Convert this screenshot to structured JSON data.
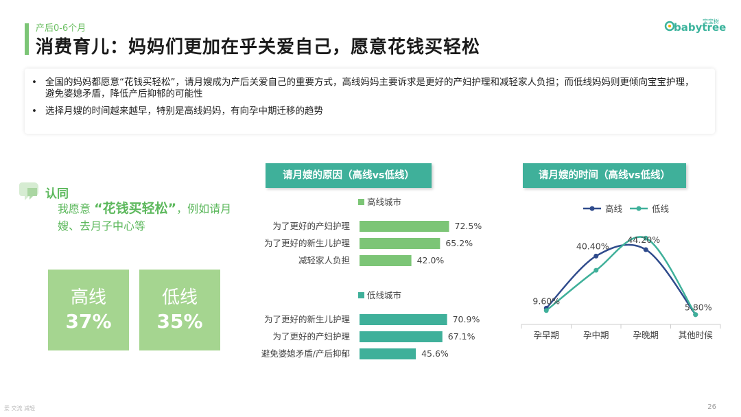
{
  "header": {
    "subtitle": "产后0-6个月",
    "title": "消费育儿：妈妈们更加在乎关爱自己，愿意花钱买轻松",
    "logo_en": "babytree",
    "logo_cn": "宝宝树"
  },
  "summary": {
    "bullets": [
      "全国的妈妈都愿意“花钱买轻松”，请月嫂成为产后关爱自己的重要方式，高线妈妈主要诉求是更好的产妇护理和减轻家人负担；而低线妈妈则更倾向宝宝护理，避免婆媳矛盾，降低产后抑郁的可能性",
      "选择月嫂的时间越来越早，特别是高线妈妈，有向孕中期迁移的趋势"
    ]
  },
  "agree": {
    "heading": "认同",
    "text_prefix": "我愿意",
    "highlight": "“花钱买轻松”",
    "text_suffix": "，例如请月嫂、去月子中心等"
  },
  "stats": [
    {
      "label": "高线",
      "value": "37%"
    },
    {
      "label": "低线",
      "value": "35%"
    }
  ],
  "colors": {
    "green_light": "#7cc576",
    "teal": "#3fb09a",
    "navy": "#2f4b8c",
    "stat_box": "#a5d590"
  },
  "chart_data": [
    {
      "type": "bar",
      "title": "请月嫂的原因（高线vs低线）",
      "groups": [
        {
          "name": "高线城市",
          "color": "#7cc576",
          "categories": [
            "为了更好的产妇护理",
            "为了更好的新生儿护理",
            "减轻家人负担"
          ],
          "values": [
            72.5,
            65.2,
            42.0
          ],
          "labels": [
            "72.5%",
            "65.2%",
            "42.0%"
          ]
        },
        {
          "name": "低线城市",
          "color": "#3fb09a",
          "categories": [
            "为了更好的新生儿护理",
            "为了更好的产妇护理",
            "避免婆媳矛盾/产后抑郁"
          ],
          "values": [
            70.9,
            67.1,
            45.6
          ],
          "labels": [
            "70.9%",
            "67.1%",
            "45.6%"
          ]
        }
      ],
      "orientation": "horizontal",
      "xlim": [
        0,
        100
      ]
    },
    {
      "type": "line",
      "title": "请月嫂的时间（高线vs低线）",
      "categories": [
        "孕早期",
        "孕中期",
        "孕晚期",
        "其他时候"
      ],
      "series": [
        {
          "name": "高线",
          "color": "#2f4b8c",
          "values": [
            9.6,
            40.4,
            44.2,
            5.8
          ]
        },
        {
          "name": "低线",
          "color": "#3fb09a",
          "values": [
            8.2,
            32.0,
            51.0,
            5.8
          ]
        }
      ],
      "data_labels": [
        "9.60%",
        "40.40%",
        "44.20%",
        "5.80%"
      ],
      "ylim": [
        0,
        60
      ],
      "legend": "top"
    }
  ],
  "footer": {
    "page": "26",
    "tools": "爱 交流 减轻"
  }
}
